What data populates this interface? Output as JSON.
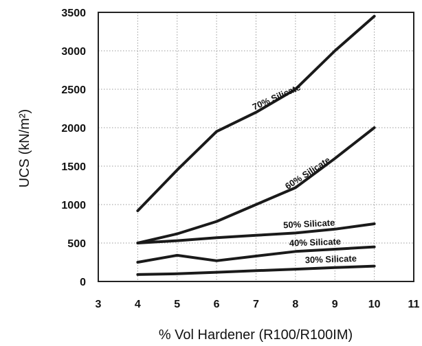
{
  "chart_data": {
    "type": "line",
    "xlabel": "% Vol Hardener (R100/R100IM)",
    "ylabel": "UCS (kN/m²)",
    "xlim": [
      3,
      11
    ],
    "ylim": [
      0,
      3500
    ],
    "xticks": [
      "3",
      "4",
      "5",
      "6",
      "7",
      "8",
      "9",
      "10",
      "11"
    ],
    "yticks": [
      "0",
      "500",
      "1000",
      "1500",
      "2000",
      "2500",
      "3000",
      "3500"
    ],
    "grid": true,
    "series": [
      {
        "name": "70% Silicate",
        "x": [
          4,
          5,
          6,
          7,
          8,
          9,
          10
        ],
        "y": [
          920,
          1450,
          1950,
          2200,
          2500,
          3000,
          3450
        ]
      },
      {
        "name": "60% Silicate",
        "x": [
          4,
          5,
          6,
          7,
          8,
          9,
          10
        ],
        "y": [
          500,
          620,
          780,
          1000,
          1220,
          1600,
          2000
        ]
      },
      {
        "name": "50% Silicate",
        "x": [
          4,
          5,
          6,
          7,
          8,
          9,
          10
        ],
        "y": [
          500,
          530,
          570,
          600,
          630,
          680,
          750
        ]
      },
      {
        "name": "40% Silicate",
        "x": [
          4,
          5,
          6,
          7,
          8,
          9,
          10
        ],
        "y": [
          250,
          340,
          270,
          330,
          390,
          420,
          450
        ]
      },
      {
        "name": "30% Silicate",
        "x": [
          4,
          5,
          6,
          7,
          8,
          9,
          10
        ],
        "y": [
          90,
          100,
          120,
          140,
          160,
          180,
          200
        ]
      }
    ]
  }
}
